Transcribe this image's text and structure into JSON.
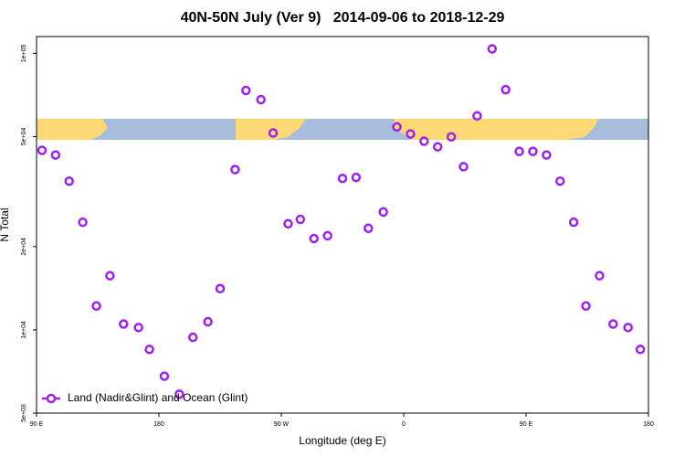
{
  "chart_data": {
    "type": "scatter",
    "title": "40N-50N July (Ver 9)   2014-09-06 to 2018-12-29",
    "x_label": "Longitude (deg E)",
    "y_label": "N Total",
    "log_y": true,
    "xlim": [
      90,
      540
    ],
    "xticks": [
      {
        "value": 90,
        "label": "90 E"
      },
      180,
      {
        "value": 270,
        "label": "90 W"
      },
      {
        "value": 360,
        "label": "0"
      },
      {
        "value": 450,
        "label": "90 E"
      },
      {
        "value": 540,
        "label": "180"
      }
    ],
    "ylim": [
      5000,
      115000
    ],
    "yticks": [
      {
        "value": 5000,
        "label": "5e+03"
      },
      {
        "value": 10000,
        "label": "1e+04"
      },
      {
        "value": 20000,
        "label": "2e+04"
      },
      {
        "value": 50000,
        "label": "5e+04"
      },
      {
        "value": 100000,
        "label": "1e+05"
      }
    ],
    "legend_position": "bottom-left",
    "series": [
      {
        "name": "Land (Nadir&Glint) and Ocean (Glint)",
        "color": "#a020f0",
        "x": [
          94,
          104,
          114,
          124,
          134,
          144,
          154,
          165,
          173,
          184,
          195,
          205,
          216,
          225,
          236,
          244,
          255,
          264,
          275,
          284,
          294,
          304,
          315,
          325,
          334,
          345,
          355,
          365,
          375,
          385,
          395,
          404,
          414,
          425,
          435,
          445,
          455,
          465,
          475,
          485,
          494,
          504,
          514,
          525,
          534
        ],
        "values": [
          44600,
          42900,
          34500,
          24500,
          12200,
          15700,
          10500,
          10200,
          8500,
          6800,
          5850,
          9400,
          10700,
          14100,
          38000,
          73400,
          68000,
          51500,
          24200,
          25100,
          21400,
          21900,
          35300,
          35600,
          23300,
          26700,
          54200,
          51100,
          48100,
          45900,
          49900,
          38900,
          59400,
          103800,
          73900,
          44200,
          44200,
          42900,
          34500,
          24500,
          12200,
          15700,
          10500,
          10200,
          8500
        ]
      }
    ]
  }
}
